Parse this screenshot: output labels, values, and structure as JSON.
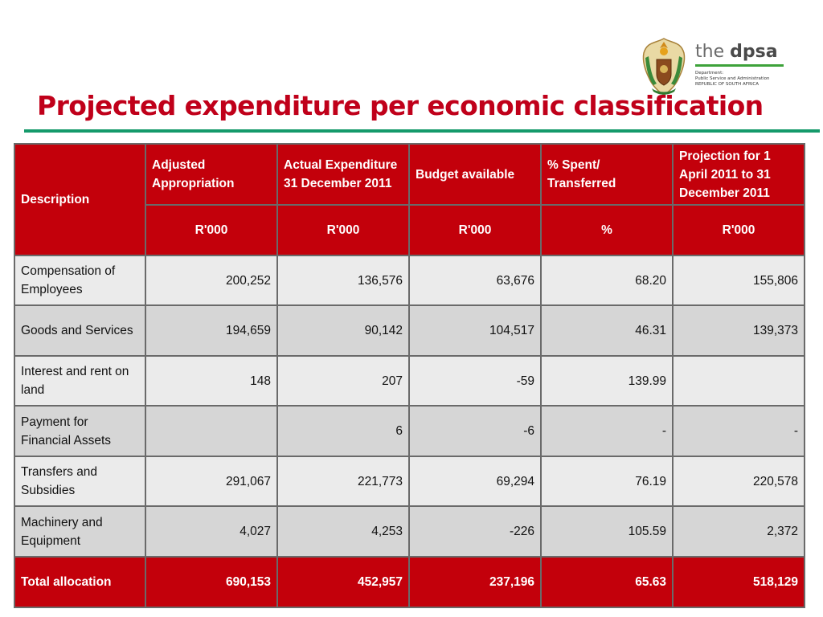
{
  "logo": {
    "the": "the",
    "dpsa": "dpsa",
    "lines": [
      "Department:",
      "Public Service and Administration",
      "REPUBLIC OF SOUTH AFRICA"
    ]
  },
  "title": "Projected expenditure per economic classification",
  "table": {
    "headers": [
      "Description",
      "Adjusted Appropriation",
      "Actual Expenditure 31 December 2011",
      "Budget available",
      "% Spent/ Transferred",
      "Projection for 1 April 2011 to 31 December 2011"
    ],
    "units": [
      "R'000",
      "R'000",
      "R'000",
      "%",
      "R'000"
    ],
    "rows": [
      {
        "description": "Compensation of Employees",
        "values": [
          "200,252",
          "136,576",
          "63,676",
          "68.20",
          "155,806"
        ]
      },
      {
        "description": "Goods and Services",
        "values": [
          "194,659",
          "90,142",
          "104,517",
          "46.31",
          "139,373"
        ]
      },
      {
        "description": "Interest and rent on land",
        "values": [
          "148",
          "207",
          "-59",
          "139.99",
          ""
        ]
      },
      {
        "description": "Payment for Financial Assets",
        "values": [
          "",
          "6",
          "-6",
          "-",
          "-"
        ]
      },
      {
        "description": "Transfers and Subsidies",
        "values": [
          "291,067",
          "221,773",
          "69,294",
          "76.19",
          "220,578"
        ]
      },
      {
        "description": "Machinery and Equipment",
        "values": [
          "4,027",
          "4,253",
          "-226",
          "105.59",
          "2,372"
        ]
      }
    ],
    "total": {
      "description": "Total allocation",
      "values": [
        "690,153",
        "452,957",
        "237,196",
        "65.63",
        "518,129"
      ]
    }
  }
}
